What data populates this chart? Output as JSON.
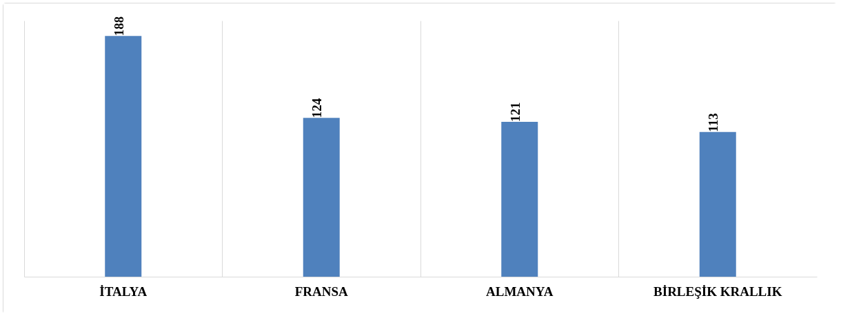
{
  "chart_data": {
    "type": "bar",
    "categories": [
      "İTALYA",
      "FRANSA",
      "ALMANYA",
      "BİRLEŞİK KRALLIK"
    ],
    "values": [
      188,
      124,
      121,
      113
    ],
    "color": "#4f81bd",
    "data_labels": true,
    "grid": "x"
  }
}
